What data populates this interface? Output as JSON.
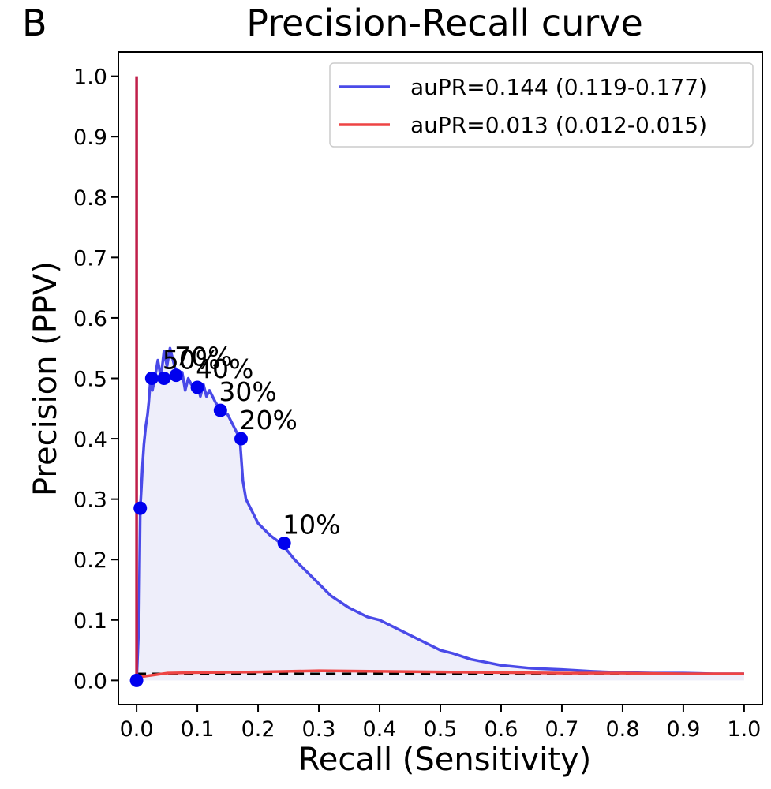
{
  "panel_label": "B",
  "chart_data": {
    "type": "line",
    "title": "Precision-Recall curve",
    "xlabel": "Recall (Sensitivity)",
    "ylabel": "Precision (PPV)",
    "xlim": [
      -0.03,
      1.03
    ],
    "ylim": [
      -0.04,
      1.04
    ],
    "xticks": [
      "0.0",
      "0.1",
      "0.2",
      "0.3",
      "0.4",
      "0.5",
      "0.6",
      "0.7",
      "0.8",
      "0.9",
      "1.0"
    ],
    "yticks": [
      "0.0",
      "0.1",
      "0.2",
      "0.3",
      "0.4",
      "0.5",
      "0.6",
      "0.7",
      "0.8",
      "0.9",
      "1.0"
    ],
    "grid": false,
    "legend_position": "top-right",
    "colors": {
      "model": "#4a4ae8",
      "baseline": "#ee4444",
      "fill": "#eeeefa",
      "points": "#0000ee",
      "reference": "#000000",
      "vertical": "#c0204a"
    },
    "series": [
      {
        "name": "auPR=0.144 (0.119-0.177)",
        "color": "#4a4ae8",
        "fill": true,
        "x": [
          0.0,
          0.004,
          0.006,
          0.008,
          0.01,
          0.012,
          0.015,
          0.018,
          0.02,
          0.023,
          0.026,
          0.03,
          0.035,
          0.04,
          0.045,
          0.05,
          0.055,
          0.06,
          0.065,
          0.07,
          0.075,
          0.08,
          0.085,
          0.09,
          0.095,
          0.1,
          0.105,
          0.11,
          0.115,
          0.12,
          0.13,
          0.14,
          0.15,
          0.16,
          0.17,
          0.175,
          0.18,
          0.19,
          0.2,
          0.22,
          0.24,
          0.26,
          0.28,
          0.3,
          0.32,
          0.35,
          0.38,
          0.4,
          0.42,
          0.45,
          0.48,
          0.5,
          0.52,
          0.55,
          0.6,
          0.65,
          0.7,
          0.75,
          0.8,
          0.85,
          0.9,
          0.95,
          1.0
        ],
        "y": [
          0.0,
          0.1,
          0.285,
          0.32,
          0.36,
          0.39,
          0.42,
          0.44,
          0.46,
          0.5,
          0.48,
          0.5,
          0.53,
          0.5,
          0.545,
          0.52,
          0.55,
          0.53,
          0.51,
          0.5,
          0.51,
          0.48,
          0.5,
          0.49,
          0.485,
          0.49,
          0.47,
          0.49,
          0.47,
          0.48,
          0.46,
          0.445,
          0.44,
          0.42,
          0.4,
          0.33,
          0.3,
          0.28,
          0.26,
          0.24,
          0.225,
          0.2,
          0.18,
          0.16,
          0.14,
          0.12,
          0.105,
          0.1,
          0.09,
          0.075,
          0.06,
          0.05,
          0.045,
          0.035,
          0.025,
          0.02,
          0.018,
          0.015,
          0.013,
          0.012,
          0.012,
          0.011,
          0.011
        ]
      },
      {
        "name": "auPR=0.013 (0.012-0.015)",
        "color": "#ee4444",
        "fill": false,
        "x": [
          0.0,
          0.05,
          0.1,
          0.2,
          0.3,
          0.4,
          0.5,
          0.6,
          0.7,
          0.8,
          0.9,
          1.0
        ],
        "y": [
          0.005,
          0.012,
          0.013,
          0.014,
          0.016,
          0.015,
          0.014,
          0.013,
          0.012,
          0.012,
          0.011,
          0.011
        ]
      }
    ],
    "vertical_line": {
      "x": 0.0,
      "y_range": [
        0.0,
        1.0
      ]
    },
    "reference_line": {
      "y": 0.011,
      "style": "dashed"
    },
    "threshold_points": [
      {
        "label": "",
        "x": 0.0,
        "y": 0.0
      },
      {
        "label": "",
        "x": 0.006,
        "y": 0.285
      },
      {
        "label": "",
        "x": 0.025,
        "y": 0.5
      },
      {
        "label": "50%",
        "x": 0.045,
        "y": 0.5
      },
      {
        "label": "70%",
        "x": 0.065,
        "y": 0.505
      },
      {
        "label": "40%",
        "x": 0.1,
        "y": 0.485
      },
      {
        "label": "30%",
        "x": 0.138,
        "y": 0.447
      },
      {
        "label": "20%",
        "x": 0.172,
        "y": 0.4
      },
      {
        "label": "10%",
        "x": 0.243,
        "y": 0.227
      }
    ]
  }
}
